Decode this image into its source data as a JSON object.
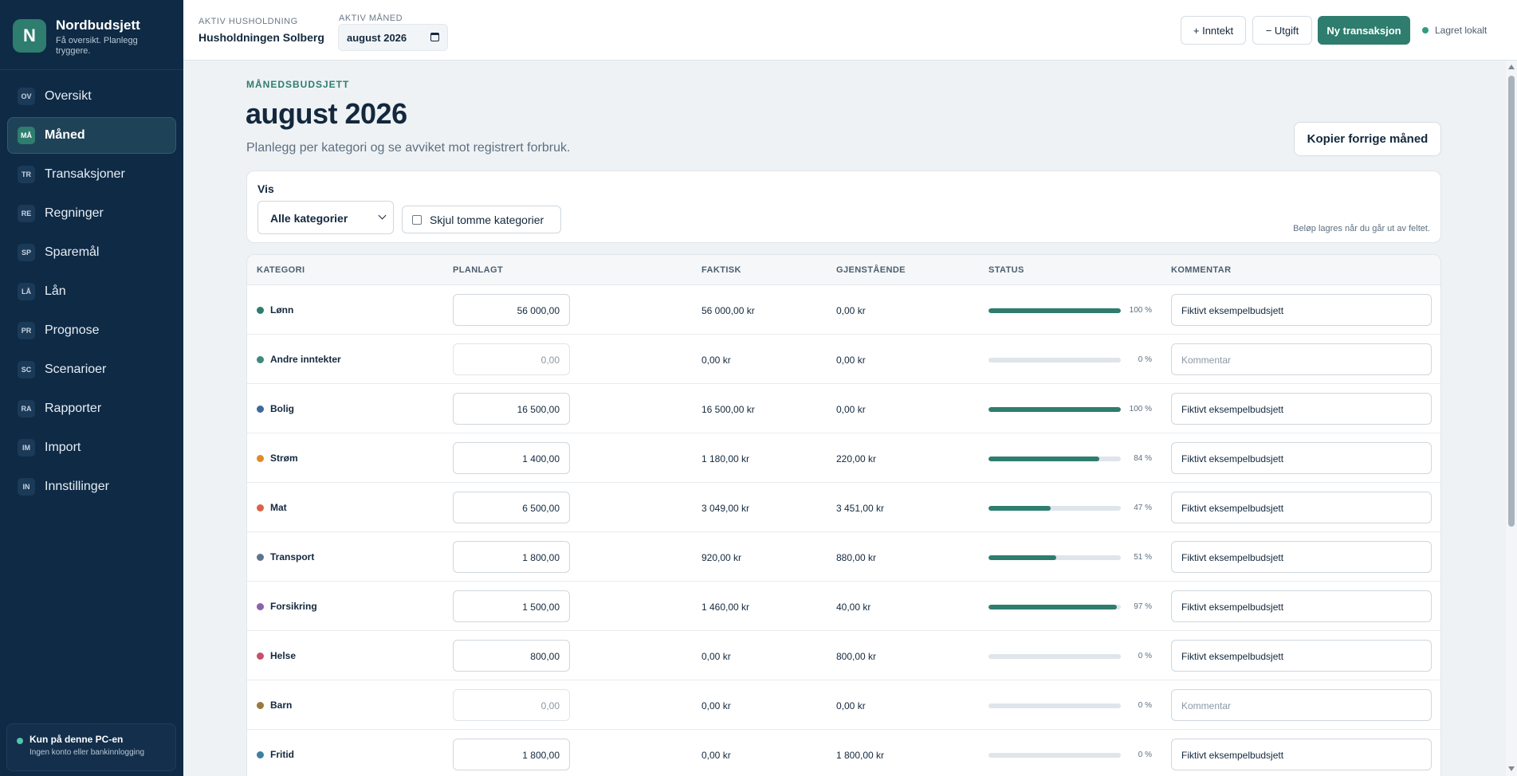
{
  "brand": {
    "logo_letter": "N",
    "name": "Nordbudsjett",
    "tagline": "Få oversikt. Planlegg tryggere."
  },
  "nav": [
    {
      "abbr": "OV",
      "label": "Oversikt",
      "active": false
    },
    {
      "abbr": "MÅ",
      "label": "Måned",
      "active": true
    },
    {
      "abbr": "TR",
      "label": "Transaksjoner",
      "active": false
    },
    {
      "abbr": "RE",
      "label": "Regninger",
      "active": false
    },
    {
      "abbr": "SP",
      "label": "Sparemål",
      "active": false
    },
    {
      "abbr": "LÅ",
      "label": "Lån",
      "active": false
    },
    {
      "abbr": "PR",
      "label": "Prognose",
      "active": false
    },
    {
      "abbr": "SC",
      "label": "Scenarioer",
      "active": false
    },
    {
      "abbr": "RA",
      "label": "Rapporter",
      "active": false
    },
    {
      "abbr": "IM",
      "label": "Import",
      "active": false
    },
    {
      "abbr": "IN",
      "label": "Innstillinger",
      "active": false
    }
  ],
  "local": {
    "title": "Kun på denne PC-en",
    "subtitle": "Ingen konto eller bankinnlogging"
  },
  "header": {
    "household_label": "AKTIV HUSHOLDNING",
    "household_value": "Husholdningen Solberg",
    "month_label": "AKTIV MÅNED",
    "month_value": "august 2026",
    "income_button": "+ Inntekt",
    "expense_button": "− Utgift",
    "new_tx_button": "Ny transaksjon",
    "saved_status": "Lagret lokalt"
  },
  "page": {
    "kicker": "MÅNEDSBUDSJETT",
    "title": "august 2026",
    "subtitle": "Planlegg per kategori og se avviket mot registrert forbruk.",
    "copy_button": "Kopier forrige måned"
  },
  "filter": {
    "label": "Vis",
    "select_value": "Alle kategorier",
    "hide_empty_label": "Skjul tomme kategorier",
    "hint": "Beløp lagres når du går ut av feltet."
  },
  "table": {
    "headers": {
      "category": "KATEGORI",
      "planned": "PLANLAGT",
      "actual": "FAKTISK",
      "remaining": "GJENSTÅENDE",
      "status": "STATUS",
      "comment": "KOMMENTAR"
    },
    "rows": [
      {
        "category": "Lønn",
        "color": "#2e7d6f",
        "planned": "56 000,00",
        "planned_empty": false,
        "actual": "56 000,00 kr",
        "remaining": "0,00 kr",
        "progress": 1.0,
        "pct": "100 %",
        "comment": "Fiktivt eksempelbudsjett",
        "comment_empty": false
      },
      {
        "category": "Andre inntekter",
        "color": "#3b8c7a",
        "planned": "0,00",
        "planned_empty": true,
        "actual": "0,00 kr",
        "remaining": "0,00 kr",
        "progress": 0.0,
        "pct": "0 %",
        "comment": "Kommentar",
        "comment_empty": true
      },
      {
        "category": "Bolig",
        "color": "#3e6a99",
        "planned": "16 500,00",
        "planned_empty": false,
        "actual": "16 500,00 kr",
        "remaining": "0,00 kr",
        "progress": 1.0,
        "pct": "100 %",
        "comment": "Fiktivt eksempelbudsjett",
        "comment_empty": false
      },
      {
        "category": "Strøm",
        "color": "#e08a2c",
        "planned": "1 400,00",
        "planned_empty": false,
        "actual": "1 180,00 kr",
        "remaining": "220,00 kr",
        "progress": 0.84,
        "pct": "84 %",
        "comment": "Fiktivt eksempelbudsjett",
        "comment_empty": false
      },
      {
        "category": "Mat",
        "color": "#d9634a",
        "planned": "6 500,00",
        "planned_empty": false,
        "actual": "3 049,00 kr",
        "remaining": "3 451,00 kr",
        "progress": 0.47,
        "pct": "47 %",
        "comment": "Fiktivt eksempelbudsjett",
        "comment_empty": false
      },
      {
        "category": "Transport",
        "color": "#5f7391",
        "planned": "1 800,00",
        "planned_empty": false,
        "actual": "920,00 kr",
        "remaining": "880,00 kr",
        "progress": 0.51,
        "pct": "51 %",
        "comment": "Fiktivt eksempelbudsjett",
        "comment_empty": false
      },
      {
        "category": "Forsikring",
        "color": "#8a62b0",
        "planned": "1 500,00",
        "planned_empty": false,
        "actual": "1 460,00 kr",
        "remaining": "40,00 kr",
        "progress": 0.97,
        "pct": "97 %",
        "comment": "Fiktivt eksempelbudsjett",
        "comment_empty": false
      },
      {
        "category": "Helse",
        "color": "#c4506c",
        "planned": "800,00",
        "planned_empty": false,
        "actual": "0,00 kr",
        "remaining": "800,00 kr",
        "progress": 0.0,
        "pct": "0 %",
        "comment": "Fiktivt eksempelbudsjett",
        "comment_empty": false
      },
      {
        "category": "Barn",
        "color": "#9a7a3c",
        "planned": "0,00",
        "planned_empty": true,
        "actual": "0,00 kr",
        "remaining": "0,00 kr",
        "progress": 0.0,
        "pct": "0 %",
        "comment": "Kommentar",
        "comment_empty": true
      },
      {
        "category": "Fritid",
        "color": "#3f7fa0",
        "planned": "1 800,00",
        "planned_empty": false,
        "actual": "0,00 kr",
        "remaining": "1 800,00 kr",
        "progress": 0.0,
        "pct": "0 %",
        "comment": "Fiktivt eksempelbudsjett",
        "comment_empty": false
      }
    ]
  }
}
